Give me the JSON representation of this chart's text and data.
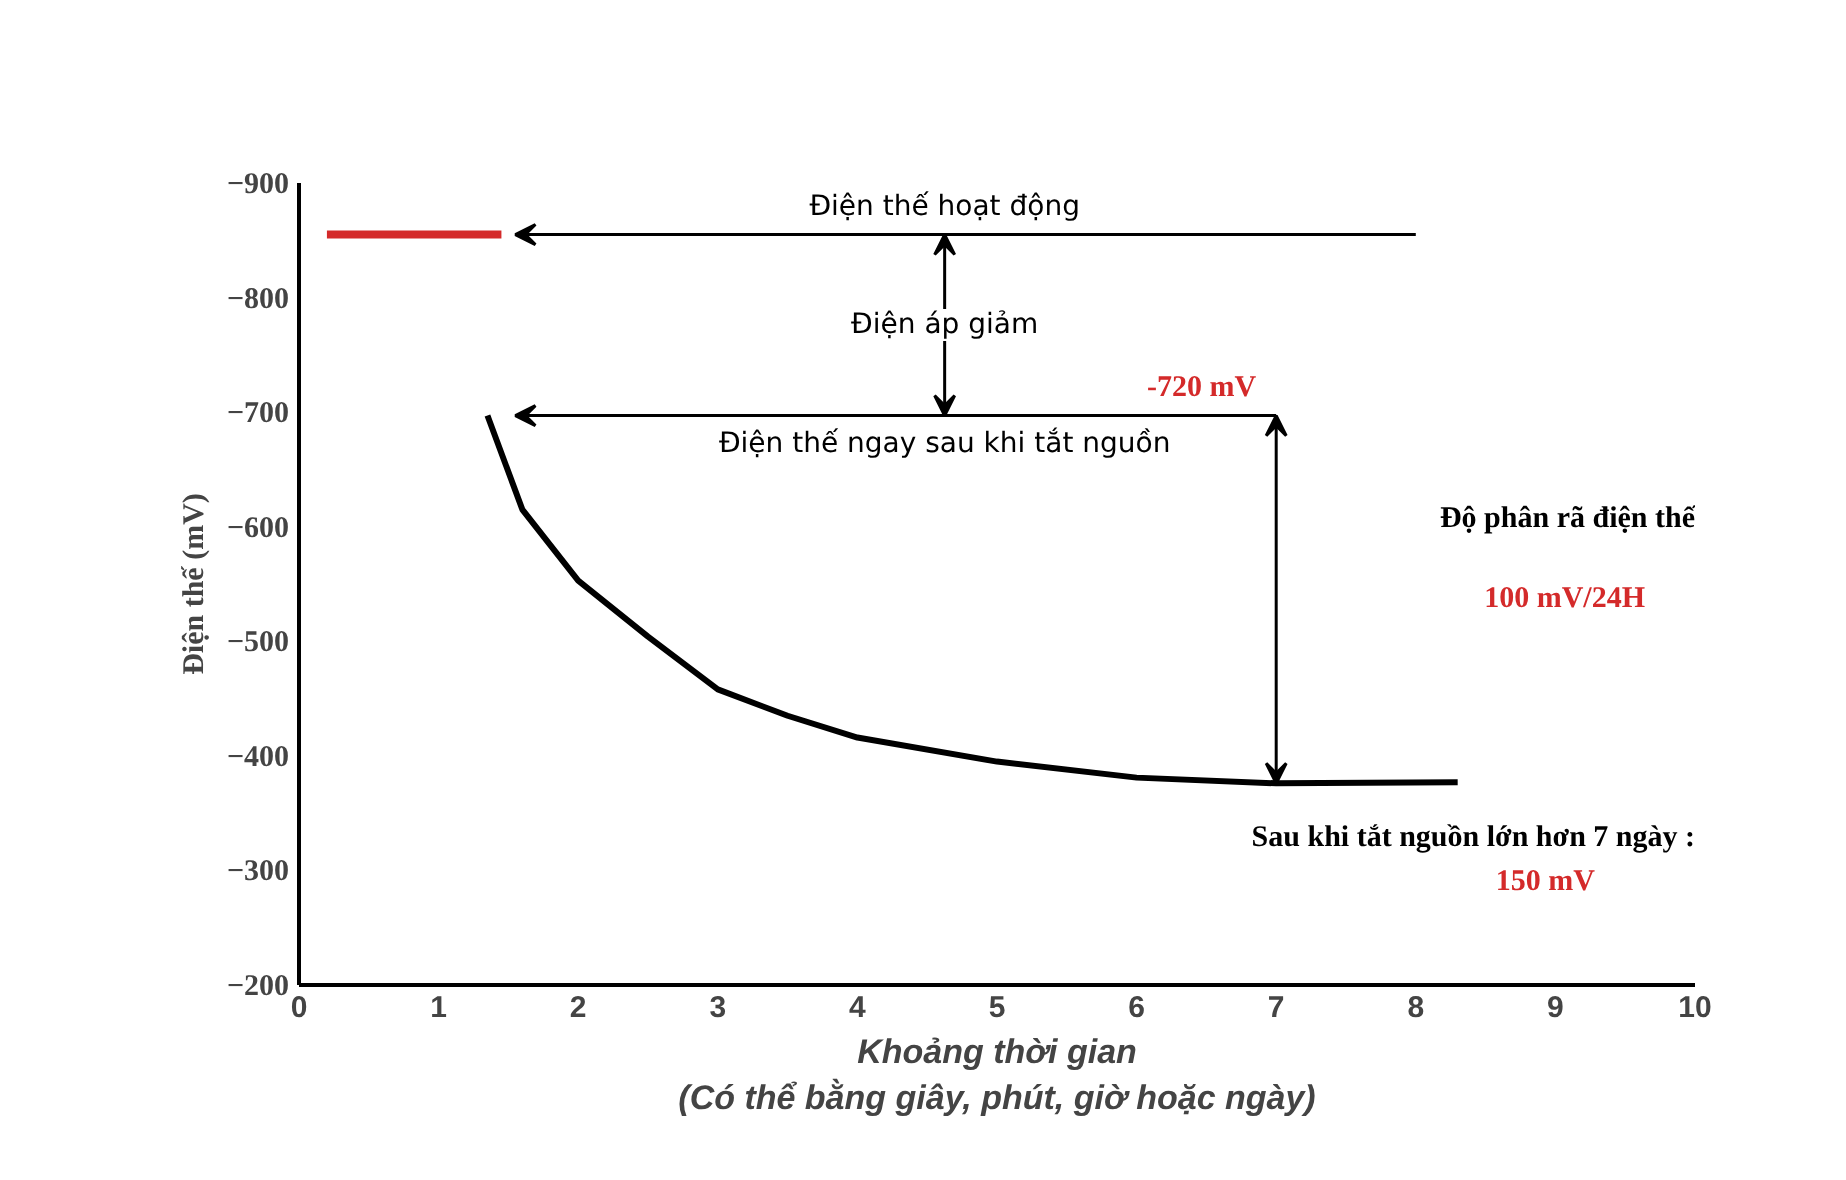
{
  "chart_data": {
    "type": "line",
    "xlabel": "Khoảng thời gian\n(Có thể bằng giây, phút, giờ hoặc ngày)",
    "ylabel": "Điện thế (mV)",
    "xlim": [
      0,
      10
    ],
    "ylim": [
      -200,
      -900
    ],
    "xticks": [
      0,
      1,
      2,
      3,
      4,
      5,
      6,
      7,
      8,
      9,
      10
    ],
    "yticks": [
      -200,
      -300,
      -400,
      -500,
      -600,
      -700,
      -800,
      -900
    ],
    "line_style": "solid",
    "series": [
      {
        "color": "#d42a2a",
        "x": [
          0.2,
          1.45
        ],
        "values": [
          -855,
          -855
        ]
      },
      {
        "color": "#000000",
        "x": [
          1.35,
          1.6,
          2.0,
          2.5,
          3,
          3.5,
          4,
          5,
          6,
          7,
          8.3
        ],
        "values": [
          -697,
          -615,
          -553,
          -504,
          -458,
          -435,
          -416,
          -395,
          -381,
          -376,
          -377
        ]
      }
    ],
    "annotations": [
      "Điện thế hoạt động",
      "Điện áp giảm",
      "Điện thế ngay sau khi tắt nguồn",
      {
        "text": "-720 mV",
        "x": 7,
        "y": -376
      },
      "Độ phân rã điện thế",
      "100 mV/24H",
      "Sau khi tắt nguồn lớn hơn 7 ngày :",
      "150 mV"
    ]
  }
}
